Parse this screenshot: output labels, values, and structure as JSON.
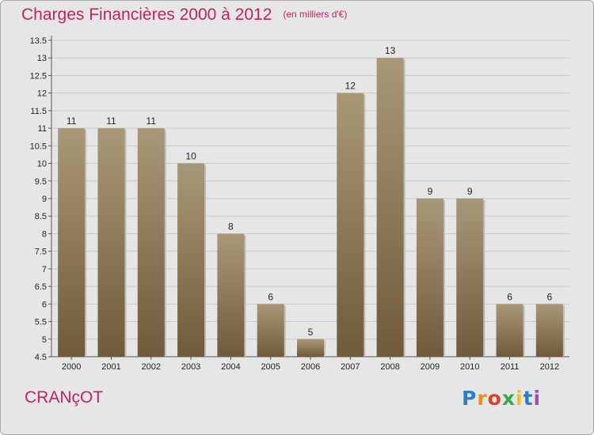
{
  "header": {
    "title": "Charges Financières 2000 à 2012",
    "subtitle": "(en milliers d'€)"
  },
  "commune": "CRANçOT",
  "logo": {
    "letters": [
      "P",
      "r",
      "o",
      "x",
      "i",
      "t",
      "i"
    ]
  },
  "colors": {
    "title": "#c0245e",
    "bar_top": "#a99878",
    "bar_bottom": "#6f5b3c",
    "background": "#e6e6e6"
  },
  "chart_data": {
    "type": "bar",
    "title": "Charges Financières 2000 à 2012",
    "subtitle": "(en milliers d'€)",
    "categories": [
      "2000",
      "2001",
      "2002",
      "2003",
      "2004",
      "2005",
      "2006",
      "2007",
      "2008",
      "2009",
      "2010",
      "2011",
      "2012"
    ],
    "values": [
      11,
      11,
      11,
      10,
      8,
      6,
      5,
      12,
      13,
      9,
      9,
      6,
      6
    ],
    "xlabel": "",
    "ylabel": "",
    "ylim": [
      4.5,
      13.5
    ],
    "yticks": [
      4.5,
      5,
      5.5,
      6,
      6.5,
      7,
      7.5,
      8,
      8.5,
      9,
      9.5,
      10,
      10.5,
      11,
      11.5,
      12,
      12.5,
      13,
      13.5
    ],
    "grid": true,
    "data_labels": true
  }
}
